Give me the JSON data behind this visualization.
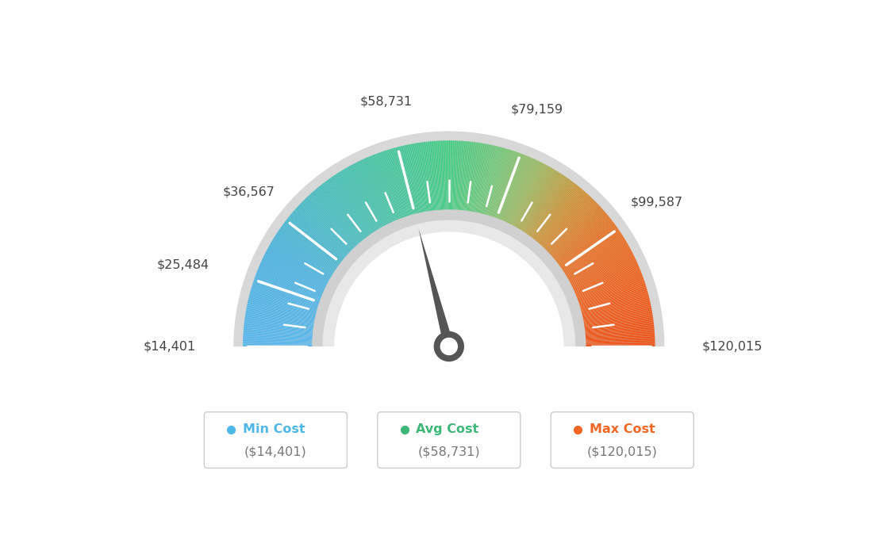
{
  "min_val": 14401,
  "max_val": 120015,
  "avg_val": 58731,
  "tick_labels": [
    "$14,401",
    "$25,484",
    "$36,567",
    "$58,731",
    "$79,159",
    "$99,587",
    "$120,015"
  ],
  "tick_values": [
    14401,
    25484,
    36567,
    58731,
    79159,
    99587,
    120015
  ],
  "color_stops": [
    [
      0.0,
      [
        0.35,
        0.72,
        0.93
      ]
    ],
    [
      0.15,
      [
        0.3,
        0.7,
        0.88
      ]
    ],
    [
      0.3,
      [
        0.28,
        0.75,
        0.72
      ]
    ],
    [
      0.42,
      [
        0.28,
        0.78,
        0.6
      ]
    ],
    [
      0.5,
      [
        0.28,
        0.8,
        0.52
      ]
    ],
    [
      0.58,
      [
        0.45,
        0.78,
        0.48
      ]
    ],
    [
      0.65,
      [
        0.62,
        0.72,
        0.38
      ]
    ],
    [
      0.72,
      [
        0.8,
        0.58,
        0.22
      ]
    ],
    [
      0.8,
      [
        0.9,
        0.45,
        0.15
      ]
    ],
    [
      0.9,
      [
        0.93,
        0.38,
        0.12
      ]
    ],
    [
      1.0,
      [
        0.93,
        0.33,
        0.1
      ]
    ]
  ],
  "legend": [
    {
      "label": "Min Cost",
      "value": "($14,401)",
      "color": "#4db8e8"
    },
    {
      "label": "Avg Cost",
      "value": "($58,731)",
      "color": "#3cb878"
    },
    {
      "label": "Max Cost",
      "value": "($120,015)",
      "color": "#f26522"
    }
  ],
  "background_color": "#ffffff",
  "needle_color": "#555555",
  "outer_r": 0.88,
  "inner_r": 0.58,
  "grey_outer_r": 0.92,
  "grey_inner_r": 0.54
}
